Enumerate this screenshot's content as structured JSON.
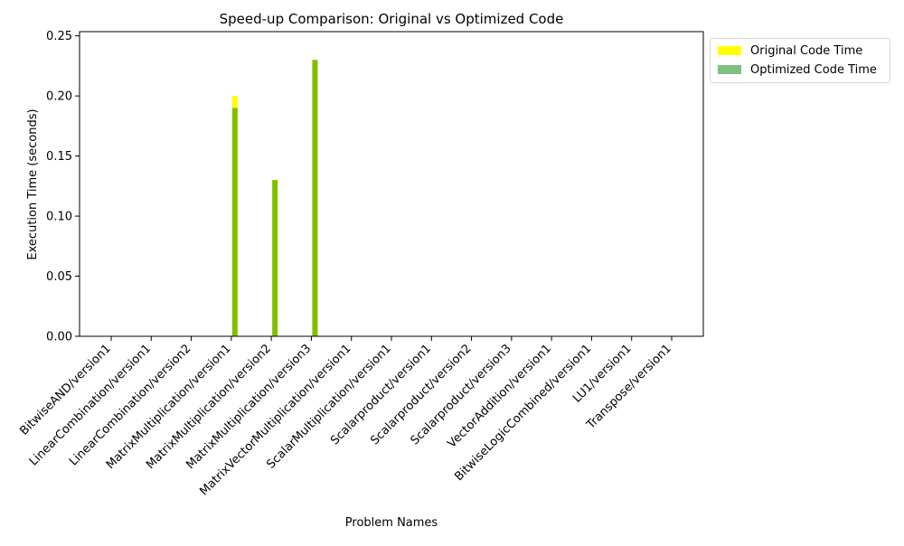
{
  "chart_data": {
    "type": "bar",
    "title": "Speed-up Comparison: Original vs Optimized Code",
    "xlabel": "Problem Names",
    "ylabel": "Execution Time (seconds)",
    "categories": [
      "BitwiseAND/version1",
      "LinearCombination/version1",
      "LinearCombination/version2",
      "MatrixMultiplication/version1",
      "MatrixMultiplication/version2",
      "MatrixMultiplication/version3",
      "MatrixVectorMultiplication/version1",
      "ScalarMultiplication/version1",
      "Scalarproduct/version1",
      "Scalarproduct/version2",
      "Scalarproduct/version3",
      "VectorAddition/version1",
      "BitwiseLogicCombined/version1",
      "LU1/version1",
      "Transpose/version1"
    ],
    "series": [
      {
        "name": "Original Code Time",
        "color": "#ffff00",
        "values": [
          0,
          0,
          0,
          0.2,
          0.13,
          0.23,
          0,
          0,
          0,
          0,
          0,
          0,
          0,
          0,
          0
        ]
      },
      {
        "name": "Optimized Code Time",
        "color": "#008000",
        "opacity": 0.5,
        "values": [
          0,
          0,
          0,
          0.19,
          0.13,
          0.23,
          0,
          0,
          0,
          0,
          0,
          0,
          0,
          0,
          0
        ]
      }
    ],
    "ylim": [
      0,
      0.2535
    ],
    "yticks": [
      "0.00",
      "0.05",
      "0.10",
      "0.15",
      "0.20",
      "0.25"
    ],
    "grid": false,
    "legend_position": "outside-top-right"
  }
}
